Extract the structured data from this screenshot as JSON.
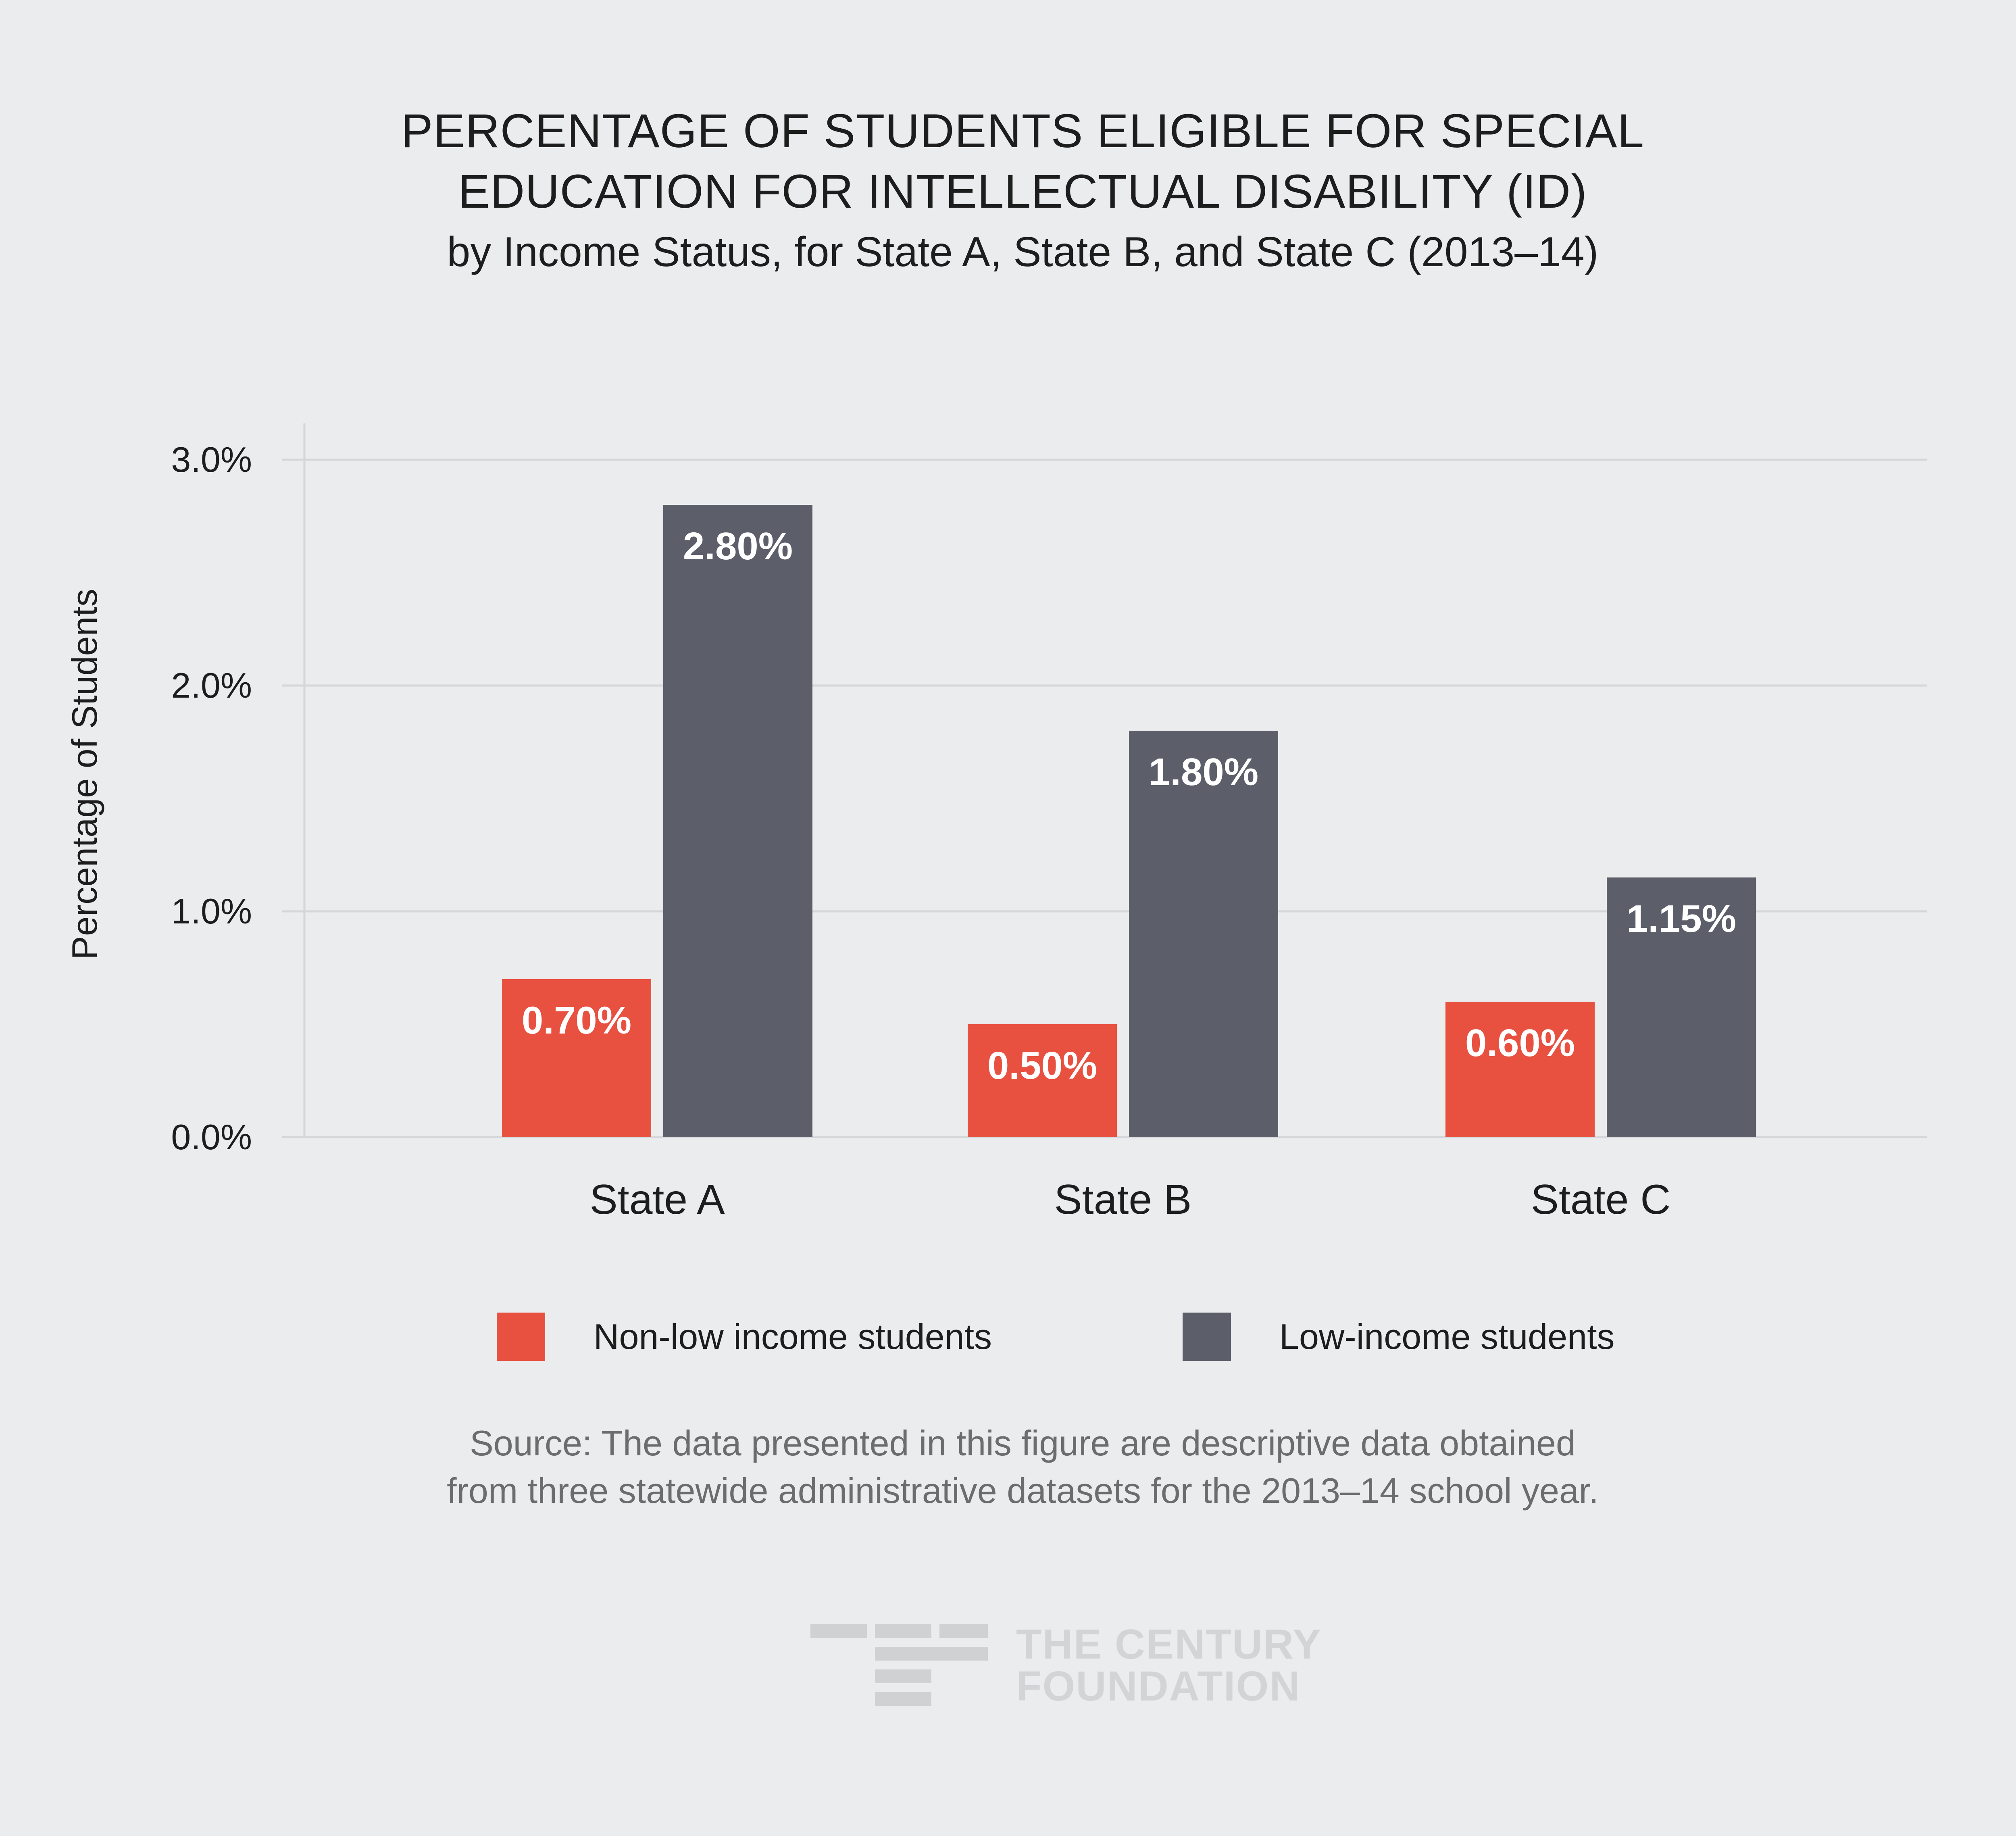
{
  "title_lines": [
    "PERCENTAGE OF STUDENTS ELIGIBLE FOR SPECIAL",
    "EDUCATION FOR INTELLECTUAL DISABILITY (ID)"
  ],
  "subtitle": "by Income Status, for State A, State B, and State C (2013–14)",
  "chart_data": {
    "type": "bar",
    "title": "PERCENTAGE OF STUDENTS ELIGIBLE FOR SPECIAL EDUCATION FOR INTELLECTUAL DISABILITY (ID)",
    "subtitle": "by Income Status, for State A, State B, and State C (2013–14)",
    "categories": [
      "State A",
      "State B",
      "State C"
    ],
    "series": [
      {
        "name": "Non-low income students",
        "color": "#e85040",
        "values": [
          0.7,
          0.5,
          0.6
        ],
        "labels": [
          "0.70%",
          "0.50%",
          "0.60%"
        ]
      },
      {
        "name": "Low-income students",
        "color": "#5c5f69",
        "values": [
          2.8,
          1.8,
          1.15
        ],
        "labels": [
          "2.80%",
          "1.80%",
          "1.15%"
        ]
      }
    ],
    "xlabel": "",
    "ylabel": "Percentage of Students",
    "ylim": [
      0,
      3.0
    ],
    "yticks": [
      0,
      1,
      2,
      3
    ],
    "ytick_labels": [
      "0.0%",
      "1.0%",
      "2.0%",
      "3.0%"
    ],
    "grid": true,
    "legend_position": "bottom"
  },
  "source": {
    "line1": "Source: The data presented in this figure are descriptive data obtained",
    "line2": "from three statewide administrative datasets for the 2013–14 school year."
  },
  "brand": {
    "line1": "THE CENTURY",
    "line2": "FOUNDATION"
  },
  "colors": {
    "background": "#ebeced",
    "non_low_income": "#e85040",
    "low_income": "#5c5f69",
    "gridline": "#d4d6d8"
  }
}
